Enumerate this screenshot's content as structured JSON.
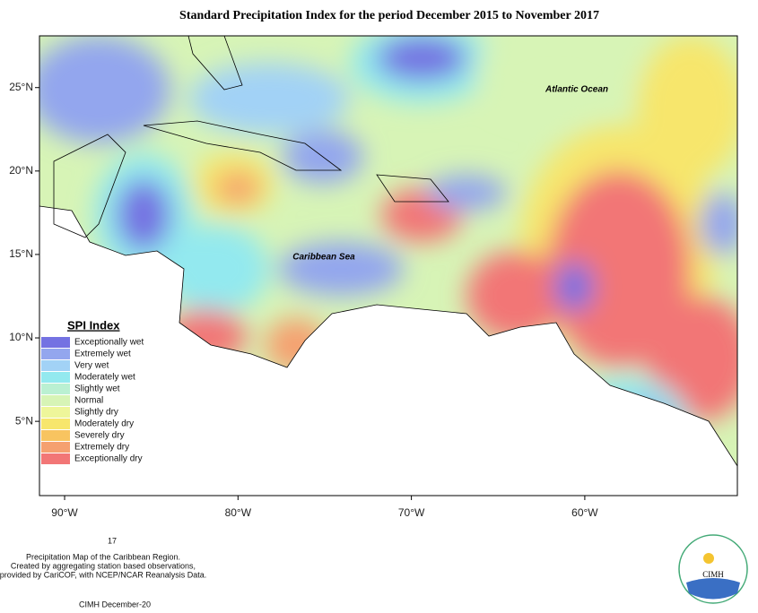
{
  "title": "Standard Precipitation Index for the period December 2015 to November 2017",
  "map": {
    "xlim": [
      -91.45,
      -51.2
    ],
    "ylim": [
      0.55,
      28.1
    ],
    "xticks": [
      {
        "value": -90,
        "label": "90°W"
      },
      {
        "value": -80,
        "label": "80°W"
      },
      {
        "value": -70,
        "label": "70°W"
      },
      {
        "value": -60,
        "label": "60°W"
      }
    ],
    "yticks": [
      {
        "value": 25,
        "label": "25°N"
      },
      {
        "value": 20,
        "label": "20°N"
      },
      {
        "value": 15,
        "label": "15°N"
      },
      {
        "value": 10,
        "label": "10°N"
      },
      {
        "value": 5,
        "label": "5°N"
      }
    ],
    "labels": [
      "Atlantic Ocean",
      "Caribbean Sea"
    ]
  },
  "legend": {
    "title": "SPI Index",
    "items": [
      {
        "label": "Exceptionally wet",
        "color": "#7472e2"
      },
      {
        "label": "Extremely wet",
        "color": "#93a6ee"
      },
      {
        "label": "Very wet",
        "color": "#a2d2f6"
      },
      {
        "label": "Moderately wet",
        "color": "#93e9ef"
      },
      {
        "label": "Slightly wet",
        "color": "#baf0d2"
      },
      {
        "label": "Normal",
        "color": "#d7f4b6"
      },
      {
        "label": "Slightly dry",
        "color": "#eef69a"
      },
      {
        "label": "Moderately dry",
        "color": "#f7e66c"
      },
      {
        "label": "Severely dry",
        "color": "#f8c460"
      },
      {
        "label": "Extremely dry",
        "color": "#f5a070"
      },
      {
        "label": "Exceptionally dry",
        "color": "#f27676"
      }
    ]
  },
  "footer": {
    "mark": "17",
    "lines": [
      "Precipitation Map of the Caribbean Region.",
      "Created by aggregating station based observations,",
      "provided by CariCOF, with NCEP/NCAR Reanalysis Data."
    ],
    "credit": "CIMH December-20"
  },
  "logo": "CIMH"
}
